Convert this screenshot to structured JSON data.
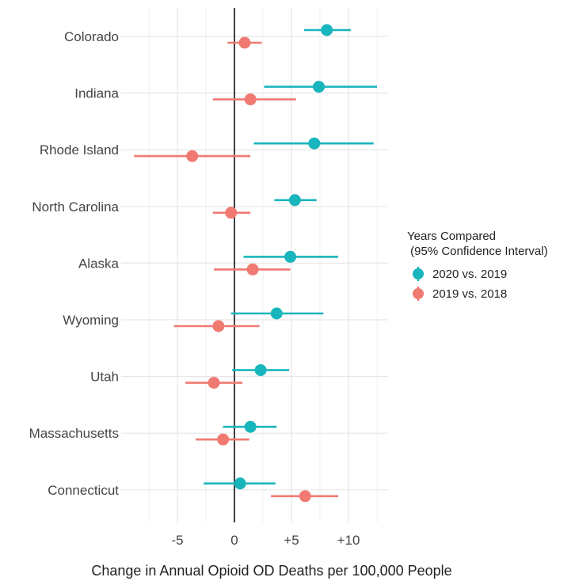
{
  "chart_data": {
    "type": "forest",
    "title": "",
    "xlabel": "Change in Annual Opioid OD Deaths per 100,000 People",
    "ylabel": "",
    "xlim": [
      -9.8,
      13.5
    ],
    "x_ticks": [
      {
        "value": -5,
        "label": "-5"
      },
      {
        "value": 0,
        "label": "0"
      },
      {
        "value": 5,
        "label": "+5"
      },
      {
        "value": 10,
        "label": "+10"
      }
    ],
    "grid": true,
    "reference_line": 0,
    "categories": [
      "Colorado",
      "Indiana",
      "Rhode Island",
      "North Carolina",
      "Alaska",
      "Wyoming",
      "Utah",
      "Massachusetts",
      "Connecticut"
    ],
    "legend": {
      "title_line1": "Years Compared",
      "title_line2": " (95% Confidence Interval)",
      "position": "right"
    },
    "series": [
      {
        "name": "2020 vs. 2019",
        "color": "#19B5BD",
        "estimates": [
          8.1,
          7.4,
          7.0,
          5.3,
          4.9,
          3.7,
          2.3,
          1.4,
          0.5
        ],
        "lower": [
          6.1,
          2.6,
          1.7,
          3.5,
          0.8,
          -0.3,
          -0.2,
          -1.0,
          -2.7
        ],
        "upper": [
          10.2,
          12.5,
          12.2,
          7.2,
          9.1,
          7.8,
          4.8,
          3.7,
          3.6
        ]
      },
      {
        "name": "2019 vs. 2018",
        "color": "#F07A72",
        "estimates": [
          0.9,
          1.4,
          -3.7,
          -0.3,
          1.6,
          -1.4,
          -1.8,
          -1.0,
          6.2
        ],
        "lower": [
          -0.6,
          -1.9,
          -8.8,
          -1.9,
          -1.8,
          -5.3,
          -4.3,
          -3.4,
          3.2
        ],
        "upper": [
          2.4,
          5.4,
          1.4,
          1.4,
          4.9,
          2.2,
          0.7,
          1.3,
          9.1
        ]
      }
    ]
  }
}
